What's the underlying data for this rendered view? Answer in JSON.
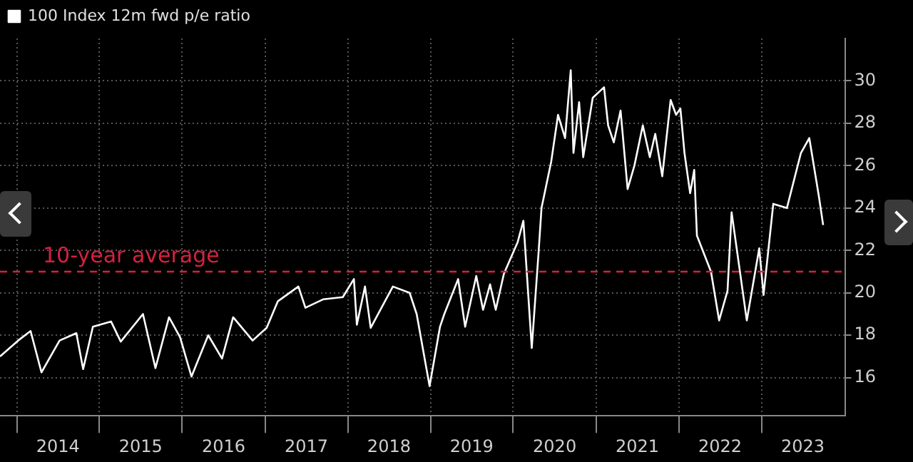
{
  "chart_data": {
    "type": "line",
    "x": [
      "2013-10-19",
      "2014-01-07",
      "2014-03-03",
      "2014-04-20",
      "2014-07-09",
      "2014-09-21",
      "2014-10-21",
      "2014-12-03",
      "2015-02-21",
      "2015-04-05",
      "2015-07-12",
      "2015-09-05",
      "2015-11-04",
      "2015-12-23",
      "2016-02-11",
      "2016-04-25",
      "2016-06-25",
      "2016-08-13",
      "2016-11-07",
      "2017-01-08",
      "2017-02-26",
      "2017-05-28",
      "2017-06-28",
      "2017-09-16",
      "2017-12-10",
      "2018-01-28",
      "2018-02-10",
      "2018-03-18",
      "2018-04-12",
      "2018-07-19",
      "2018-10-01",
      "2018-11-01",
      "2018-12-28",
      "2019-02-12",
      "2019-03-03",
      "2019-05-03",
      "2019-06-03",
      "2019-07-22",
      "2019-08-21",
      "2019-09-21",
      "2019-10-16",
      "2019-11-21",
      "2020-01-21",
      "2020-02-15",
      "2020-03-23",
      "2020-04-22",
      "2020-05-05",
      "2020-06-17",
      "2020-07-17",
      "2020-08-17",
      "2020-09-11",
      "2020-09-23",
      "2020-10-18",
      "2020-11-05",
      "2020-12-17",
      "2021-02-05",
      "2021-02-23",
      "2021-03-20",
      "2021-04-19",
      "2021-05-20",
      "2021-06-19",
      "2021-07-26",
      "2021-08-26",
      "2021-09-19",
      "2021-10-20",
      "2021-11-26",
      "2021-12-20",
      "2022-01-08",
      "2022-01-26",
      "2022-02-20",
      "2022-03-10",
      "2022-03-22",
      "2022-05-23",
      "2022-06-28",
      "2022-08-04",
      "2022-08-22",
      "2022-10-28",
      "2022-12-22",
      "2023-01-10",
      "2023-02-22",
      "2023-04-23",
      "2023-06-24",
      "2023-07-31",
      "2023-09-12",
      "2023-09-30"
    ],
    "series": [
      {
        "name": "100 Index 12m fwd p/e ratio",
        "color": "#ffffff",
        "values": [
          17.0,
          17.75,
          18.2,
          16.25,
          17.75,
          18.1,
          16.4,
          18.4,
          18.65,
          17.7,
          19.0,
          16.45,
          18.85,
          17.9,
          16.05,
          18.0,
          16.9,
          18.85,
          17.75,
          18.35,
          19.6,
          20.3,
          19.3,
          19.7,
          19.8,
          20.65,
          18.5,
          20.3,
          18.35,
          20.3,
          20.0,
          19.0,
          15.6,
          18.4,
          19.0,
          20.65,
          18.4,
          20.8,
          19.2,
          20.4,
          19.2,
          20.9,
          22.4,
          23.4,
          17.4,
          21.9,
          24.0,
          26.2,
          28.4,
          27.3,
          30.5,
          26.6,
          29.0,
          26.4,
          29.2,
          29.7,
          27.9,
          27.1,
          28.6,
          24.9,
          26.0,
          27.9,
          26.4,
          27.5,
          25.5,
          29.1,
          28.4,
          28.7,
          26.6,
          24.7,
          25.8,
          22.7,
          21.0,
          18.7,
          20.1,
          23.8,
          18.7,
          22.1,
          19.9,
          24.2,
          24.0,
          26.6,
          27.3,
          24.5,
          23.2
        ]
      }
    ],
    "xlim": [
      "2013-10-19",
      "2024-01-07"
    ],
    "xticks": [
      {
        "value": "2014-01-01",
        "label": null
      },
      {
        "value": "2014-07-02",
        "label": "2014"
      },
      {
        "value": "2015-01-01",
        "label": null
      },
      {
        "value": "2015-07-02",
        "label": "2015"
      },
      {
        "value": "2016-01-01",
        "label": null
      },
      {
        "value": "2016-07-02",
        "label": "2016"
      },
      {
        "value": "2017-01-01",
        "label": null
      },
      {
        "value": "2017-07-02",
        "label": "2017"
      },
      {
        "value": "2018-01-01",
        "label": null
      },
      {
        "value": "2018-07-02",
        "label": "2018"
      },
      {
        "value": "2019-01-01",
        "label": null
      },
      {
        "value": "2019-07-02",
        "label": "2019"
      },
      {
        "value": "2020-01-01",
        "label": null
      },
      {
        "value": "2020-07-02",
        "label": "2020"
      },
      {
        "value": "2021-01-01",
        "label": null
      },
      {
        "value": "2021-07-02",
        "label": "2021"
      },
      {
        "value": "2022-01-01",
        "label": null
      },
      {
        "value": "2022-07-02",
        "label": "2022"
      },
      {
        "value": "2023-01-01",
        "label": null
      },
      {
        "value": "2023-07-02",
        "label": "2023"
      }
    ],
    "ylim": [
      14.2,
      32
    ],
    "yticks": [
      16,
      18,
      20,
      22,
      24,
      26,
      28,
      30
    ],
    "ref_lines": [
      {
        "axis": "y",
        "value": 21,
        "label": "10-year average",
        "color": "#d6213f",
        "line_style": "dashed"
      }
    ],
    "grid": true,
    "legend": "top left",
    "marker": "none",
    "line_style": "solid"
  }
}
